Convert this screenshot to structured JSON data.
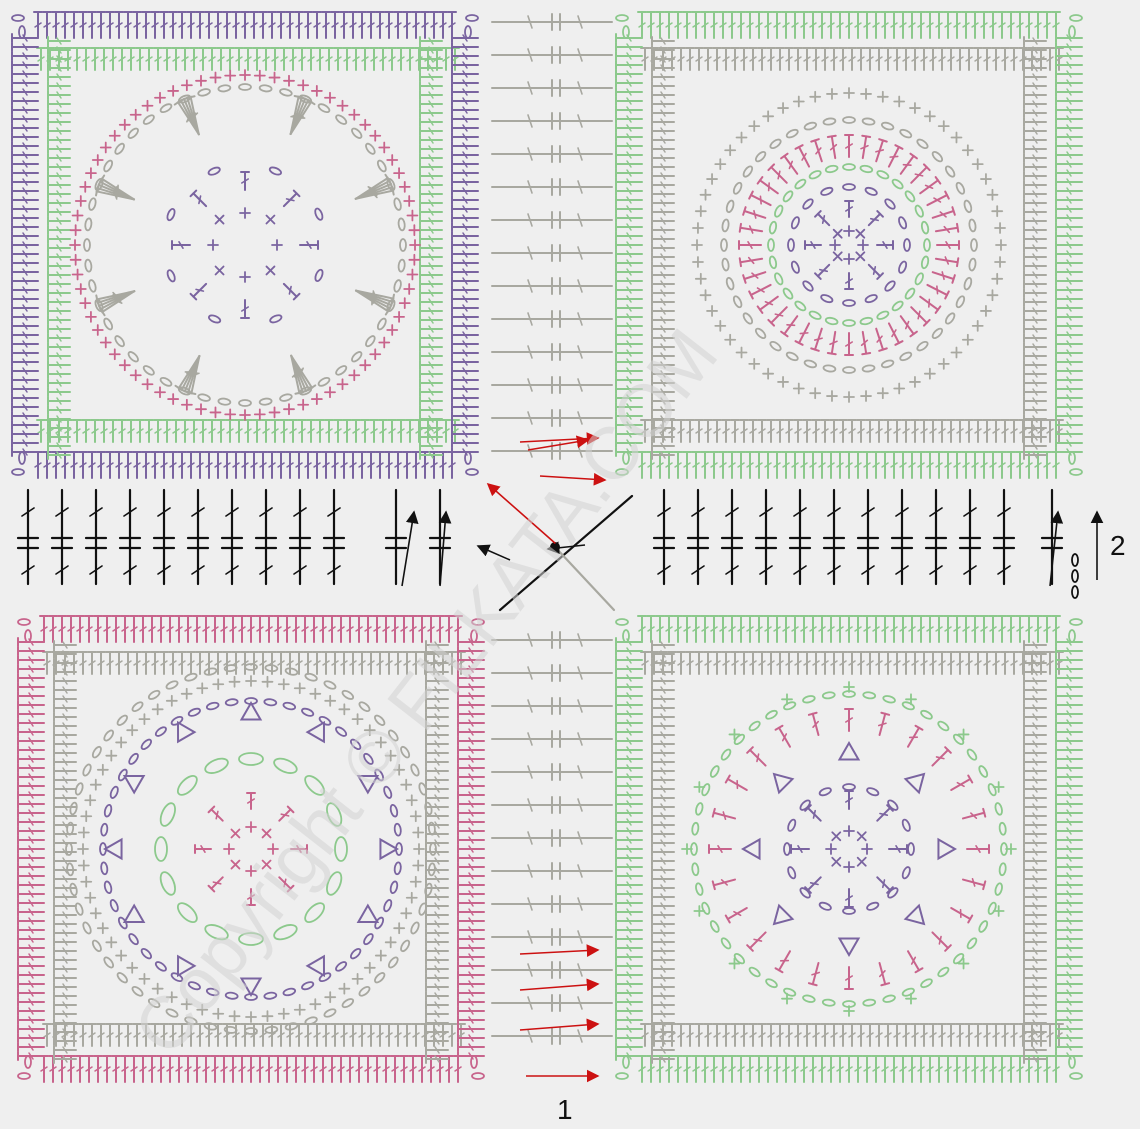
{
  "diagram": {
    "labels": {
      "row_1": "1",
      "row_2": "2"
    },
    "watermark": "Copyright © FILKATA.COM",
    "colors": {
      "background": "#efefef",
      "purple": "#7a64a0",
      "green": "#8cc98c",
      "pink": "#c8648c",
      "gray": "#a8a8a0",
      "black": "#111111",
      "red": "#cc1111"
    },
    "motifs": [
      {
        "id": "top-left",
        "rings": [
          "purple",
          "gray",
          "pink"
        ],
        "frame": [
          "purple",
          "green"
        ]
      },
      {
        "id": "top-right",
        "rings": [
          "purple",
          "green",
          "pink",
          "gray"
        ],
        "frame": [
          "green",
          "gray"
        ]
      },
      {
        "id": "bottom-left",
        "rings": [
          "pink",
          "green",
          "purple",
          "gray"
        ],
        "frame": [
          "pink",
          "gray"
        ]
      },
      {
        "id": "bottom-right",
        "rings": [
          "purple",
          "pink",
          "green"
        ],
        "frame": [
          "green",
          "gray"
        ]
      }
    ]
  }
}
